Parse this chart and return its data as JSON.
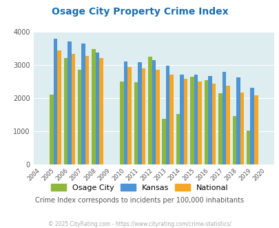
{
  "title": "Osage City Property Crime Index",
  "years": [
    2004,
    2005,
    2006,
    2007,
    2008,
    2009,
    2010,
    2011,
    2012,
    2013,
    2014,
    2015,
    2016,
    2017,
    2018,
    2019,
    2020
  ],
  "osage_city": [
    0,
    2100,
    3200,
    2850,
    3480,
    0,
    2500,
    2480,
    3250,
    1380,
    1520,
    2640,
    2540,
    2150,
    1460,
    1010,
    0
  ],
  "kansas": [
    0,
    3800,
    3720,
    3650,
    3380,
    0,
    3100,
    3080,
    3150,
    2980,
    2700,
    2700,
    2670,
    2790,
    2620,
    2310,
    0
  ],
  "national": [
    0,
    3430,
    3340,
    3270,
    3200,
    0,
    2940,
    2900,
    2860,
    2700,
    2590,
    2490,
    2430,
    2380,
    2160,
    2090,
    0
  ],
  "color_osage": "#8db83b",
  "color_kansas": "#4d94d5",
  "color_national": "#f5a623",
  "bg_color": "#ddedf0",
  "ylim": [
    0,
    4000
  ],
  "yticks": [
    0,
    1000,
    2000,
    3000,
    4000
  ],
  "subtitle": "Crime Index corresponds to incidents per 100,000 inhabitants",
  "footer": "© 2025 CityRating.com - https://www.cityrating.com/crime-statistics/",
  "legend_labels": [
    "Osage City",
    "Kansas",
    "National"
  ],
  "title_color": "#1a6faf",
  "subtitle_color": "#555555",
  "footer_color": "#aaaaaa",
  "tick_color": "#555555"
}
